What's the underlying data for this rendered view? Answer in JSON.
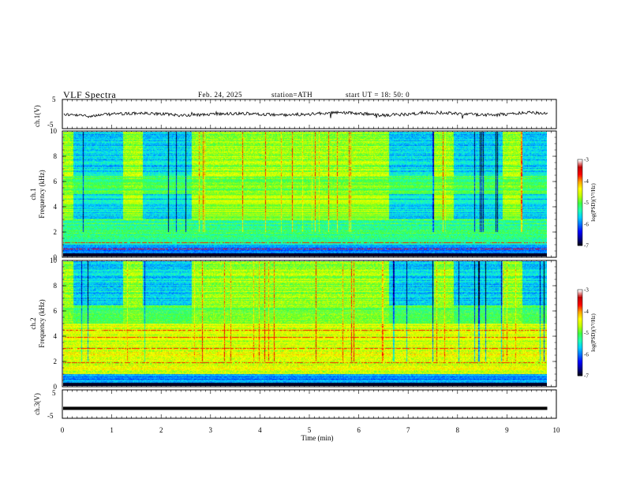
{
  "header": {
    "title": "VLF  Spectra",
    "date": "Feb. 24, 2025",
    "station": "station=ATH",
    "start": "start  UT  =    18: 50: 0"
  },
  "chart_data": [
    {
      "type": "line",
      "panel": "ch1-waveform",
      "ylabel": "ch.1(V)",
      "ylim": [
        -5,
        5
      ],
      "y_ticks": [
        "5",
        "-5"
      ],
      "x_range": [
        0,
        10
      ],
      "series_color": "#000000",
      "description_level": "noisy waveform near 0 V"
    },
    {
      "type": "heatmap",
      "panel": "ch1-spectrogram",
      "ylabel": "ch.1\nFrequency  (kHz)",
      "ylabel_line1": "ch.1",
      "ylabel_line2": "Frequency  (kHz)",
      "y_ticks": [
        "0",
        "2",
        "4",
        "6",
        "8",
        "10"
      ],
      "ylim": [
        0,
        10
      ],
      "xlim": [
        0,
        9.8
      ],
      "quiet_intervals_min": [
        [
          0.2,
          1.2
        ],
        [
          1.6,
          2.6
        ],
        [
          6.6,
          7.5
        ],
        [
          7.9,
          8.9
        ],
        [
          9.3,
          9.8
        ]
      ],
      "colorbar": {
        "label": "log(PSD)(V²/Hz)",
        "ticks": [
          "-3",
          "-4",
          "-5",
          "-6",
          "-7"
        ],
        "range": [
          -7,
          -3
        ]
      }
    },
    {
      "type": "heatmap",
      "panel": "ch2-spectrogram",
      "ylabel_line1": "ch.2",
      "ylabel_line2": "Frequency  (kHz)",
      "y_ticks": [
        "0",
        "2",
        "4",
        "6",
        "8",
        "10"
      ],
      "ylim": [
        0,
        10
      ],
      "xlim": [
        0,
        9.8
      ],
      "quiet_intervals_min": [
        [
          0.2,
          1.2
        ],
        [
          1.6,
          2.6
        ],
        [
          6.6,
          7.5
        ],
        [
          7.9,
          8.9
        ],
        [
          9.3,
          9.8
        ]
      ],
      "colorbar": {
        "label": "log(PSD)(V²/Hz)",
        "ticks": [
          "-3",
          "-4",
          "-5",
          "-6",
          "-7"
        ],
        "range": [
          -7,
          -3
        ]
      }
    },
    {
      "type": "line",
      "panel": "ch3-waveform",
      "ylabel": "ch.3(V)",
      "ylim": [
        -5,
        5
      ],
      "y_ticks": [
        "5",
        "-5"
      ],
      "x_range": [
        0,
        9.8
      ],
      "level_value": -1.5,
      "series_color": "#000000"
    }
  ],
  "xaxis": {
    "label": "Time  (min)",
    "ticks": [
      "0",
      "1",
      "2",
      "3",
      "4",
      "5",
      "6",
      "7",
      "8",
      "9",
      "10"
    ],
    "range": [
      0,
      10
    ]
  },
  "colormap": [
    "#000000",
    "#00008b",
    "#0000ff",
    "#0070ff",
    "#00d0ff",
    "#20ffb0",
    "#40ff40",
    "#c0ff00",
    "#ffff00",
    "#ffa000",
    "#ff0000",
    "#c00000",
    "#ffffff"
  ]
}
